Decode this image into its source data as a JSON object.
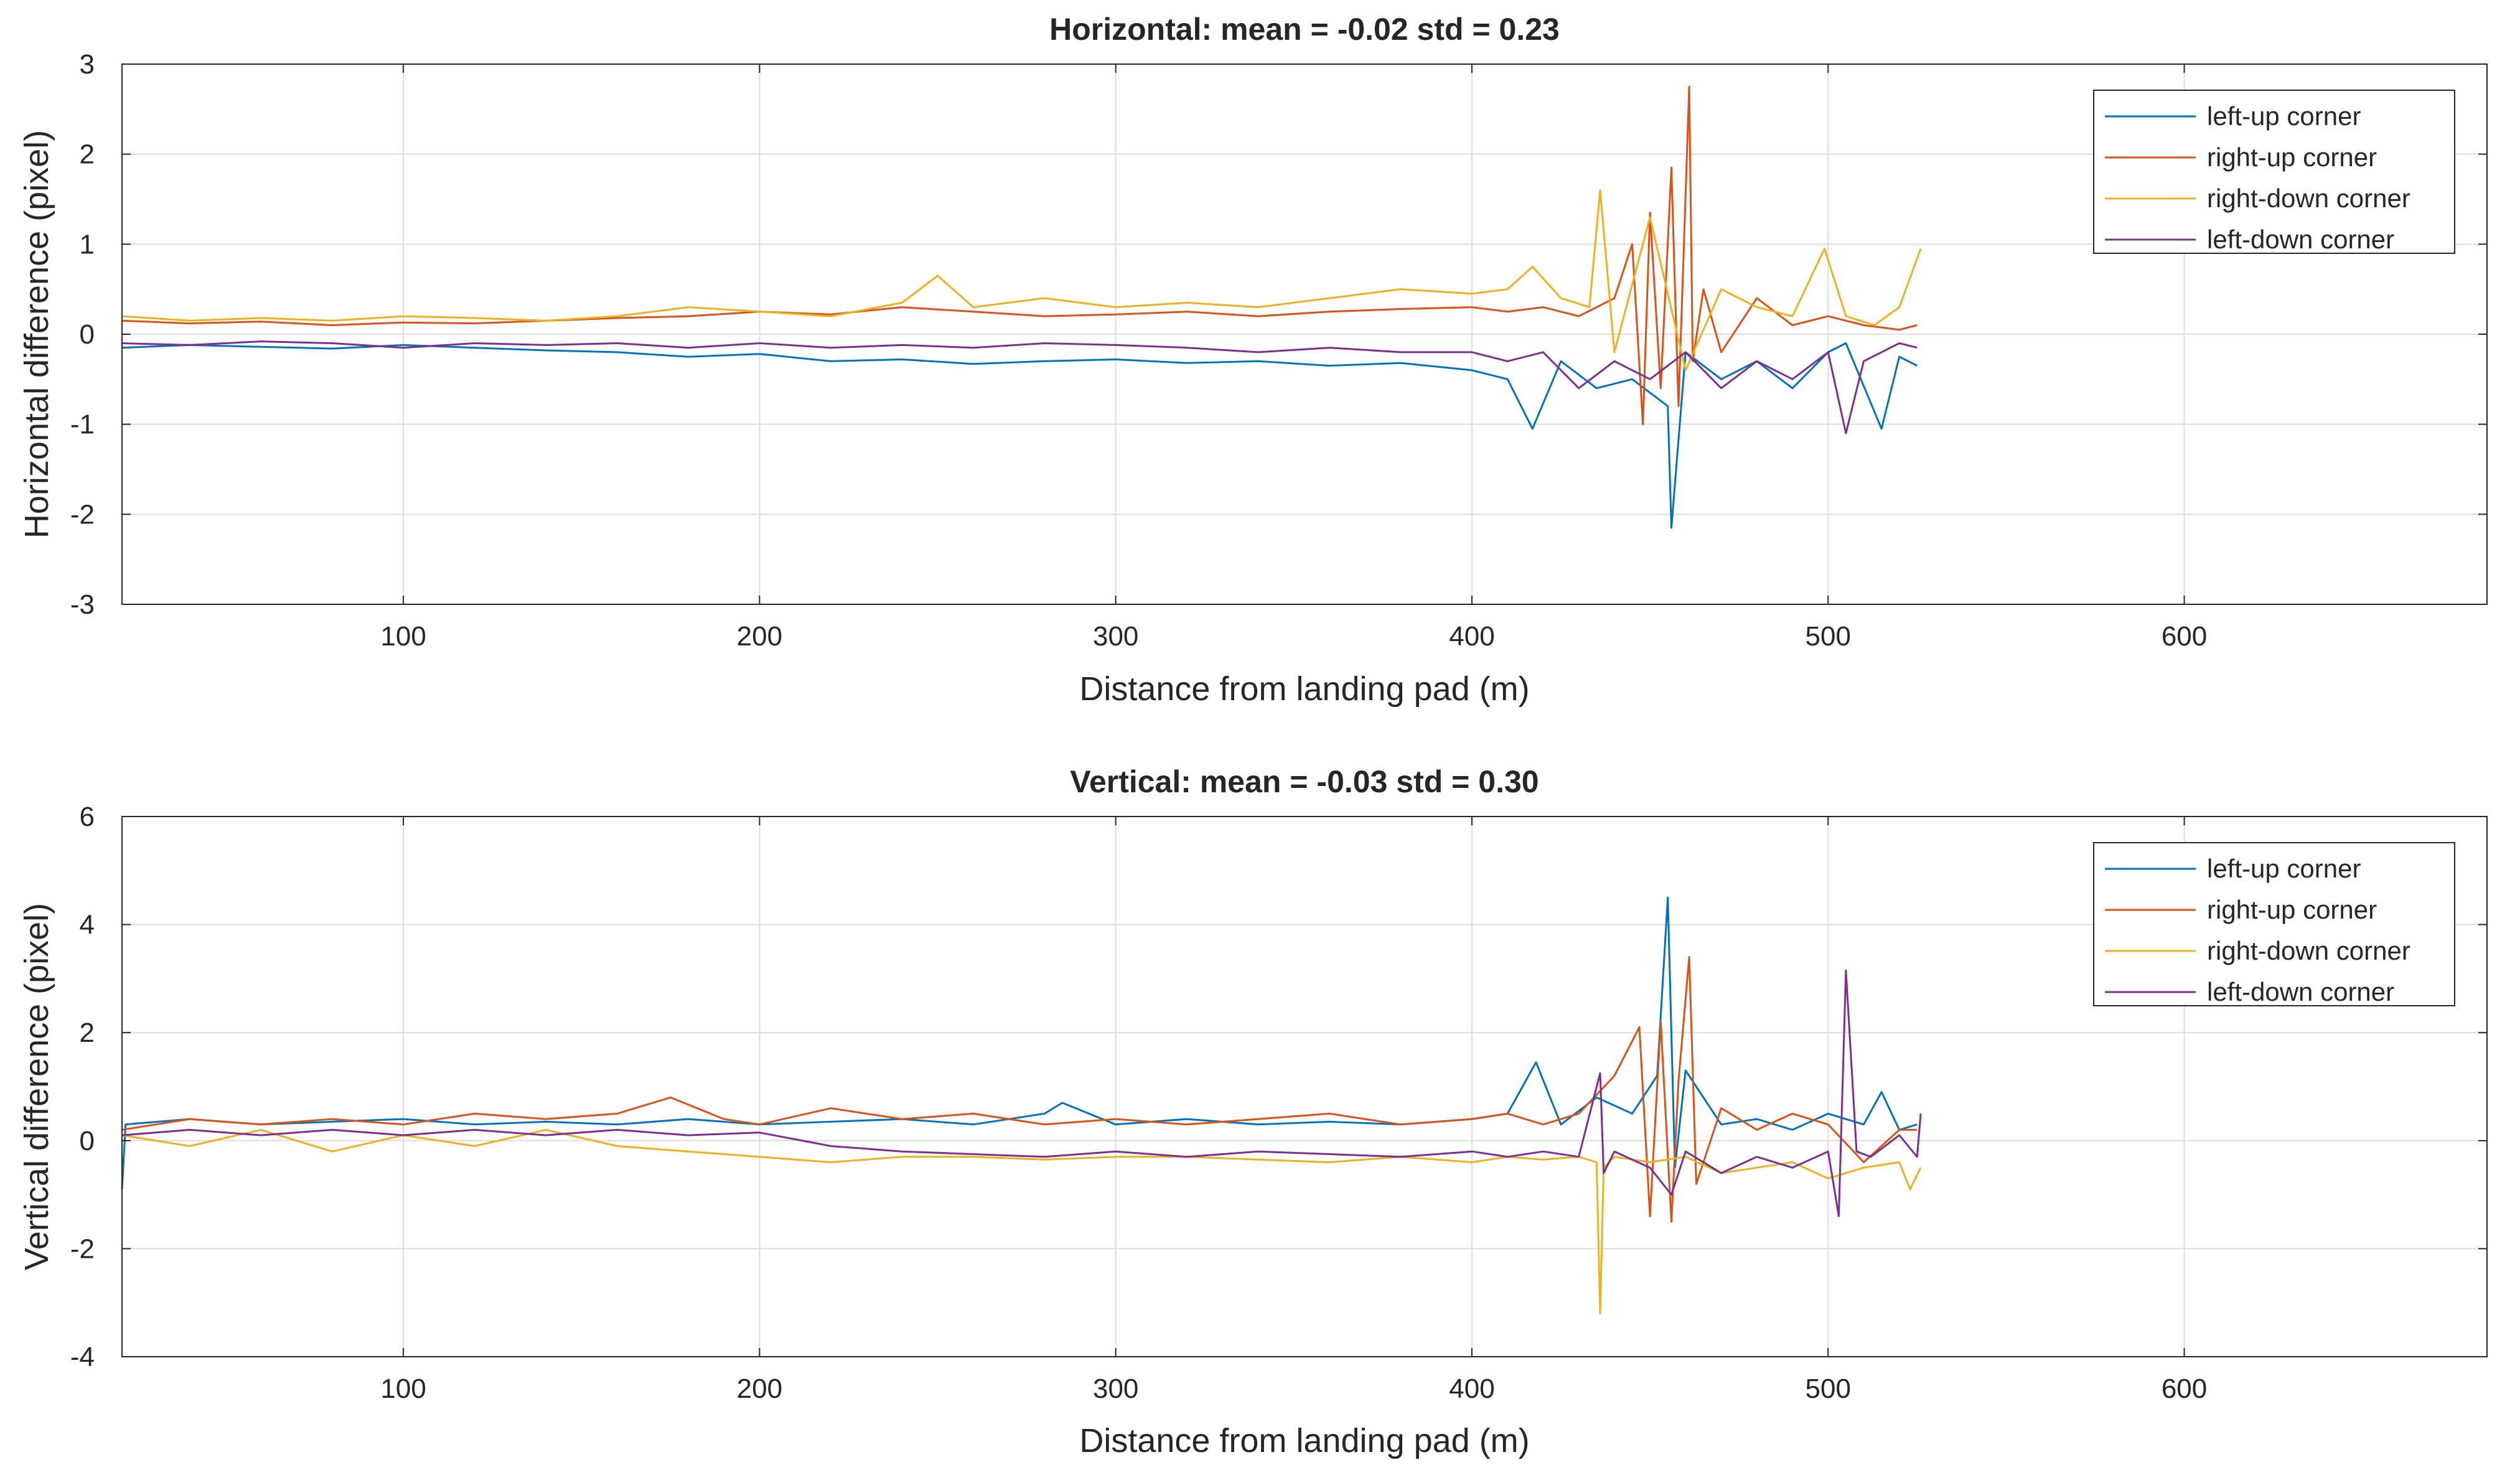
{
  "chart_data": [
    {
      "type": "line",
      "title": "Horizontal: mean = -0.02  std = 0.23",
      "xlabel": "Distance from landing pad (m)",
      "ylabel": "Horizontal difference (pixel)",
      "xlim": [
        21,
        685
      ],
      "ylim": [
        -3,
        3
      ],
      "xticks": [
        100,
        200,
        300,
        400,
        500,
        600
      ],
      "yticks": [
        -3,
        -2,
        -1,
        0,
        1,
        2,
        3
      ],
      "legend_location": "top-right",
      "grid": true,
      "series": [
        {
          "name": "left-up corner",
          "color": "#0072BD",
          "x": [
            21,
            40,
            60,
            80,
            100,
            120,
            140,
            160,
            180,
            200,
            220,
            240,
            260,
            280,
            300,
            320,
            340,
            360,
            380,
            400,
            410,
            417,
            425,
            435,
            445,
            455,
            456,
            460,
            470,
            480,
            490,
            500,
            505,
            515,
            520,
            525
          ],
          "y": [
            -0.15,
            -0.12,
            -0.14,
            -0.16,
            -0.12,
            -0.15,
            -0.18,
            -0.2,
            -0.25,
            -0.22,
            -0.3,
            -0.28,
            -0.33,
            -0.3,
            -0.28,
            -0.32,
            -0.3,
            -0.35,
            -0.32,
            -0.4,
            -0.5,
            -1.05,
            -0.3,
            -0.6,
            -0.5,
            -0.8,
            -2.15,
            -0.2,
            -0.5,
            -0.3,
            -0.6,
            -0.2,
            -0.1,
            -1.05,
            -0.25,
            -0.35
          ]
        },
        {
          "name": "right-up corner",
          "color": "#D95319",
          "x": [
            21,
            40,
            60,
            80,
            100,
            120,
            140,
            160,
            180,
            200,
            220,
            240,
            260,
            280,
            300,
            320,
            340,
            360,
            380,
            400,
            410,
            420,
            430,
            440,
            445,
            448,
            450,
            453,
            456,
            458,
            461,
            462,
            465,
            470,
            480,
            490,
            500,
            510,
            520,
            525
          ],
          "y": [
            0.15,
            0.12,
            0.14,
            0.1,
            0.13,
            0.12,
            0.15,
            0.18,
            0.2,
            0.25,
            0.22,
            0.3,
            0.25,
            0.2,
            0.22,
            0.25,
            0.2,
            0.25,
            0.28,
            0.3,
            0.25,
            0.3,
            0.2,
            0.4,
            1.0,
            -1.0,
            1.35,
            -0.6,
            1.85,
            -0.8,
            2.75,
            -0.3,
            0.5,
            -0.2,
            0.4,
            0.1,
            0.2,
            0.1,
            0.05,
            0.1
          ]
        },
        {
          "name": "right-down corner",
          "color": "#EDB120",
          "x": [
            21,
            40,
            60,
            80,
            100,
            120,
            140,
            160,
            180,
            200,
            220,
            240,
            250,
            260,
            280,
            300,
            320,
            340,
            360,
            380,
            400,
            410,
            417,
            425,
            433,
            436,
            440,
            450,
            460,
            470,
            480,
            490,
            499,
            505,
            513,
            520,
            526
          ],
          "y": [
            0.2,
            0.15,
            0.18,
            0.15,
            0.2,
            0.18,
            0.15,
            0.2,
            0.3,
            0.25,
            0.2,
            0.35,
            0.65,
            0.3,
            0.4,
            0.3,
            0.35,
            0.3,
            0.4,
            0.5,
            0.45,
            0.5,
            0.75,
            0.4,
            0.3,
            1.6,
            -0.2,
            1.3,
            -0.4,
            0.5,
            0.3,
            0.2,
            0.95,
            0.2,
            0.1,
            0.3,
            0.95
          ]
        },
        {
          "name": "left-down corner",
          "color": "#7E2F8E",
          "x": [
            21,
            40,
            60,
            80,
            100,
            120,
            140,
            160,
            180,
            200,
            220,
            240,
            260,
            280,
            300,
            320,
            340,
            360,
            380,
            400,
            410,
            420,
            430,
            440,
            450,
            460,
            470,
            480,
            490,
            500,
            505,
            510,
            520,
            525
          ],
          "y": [
            -0.1,
            -0.12,
            -0.08,
            -0.1,
            -0.15,
            -0.1,
            -0.12,
            -0.1,
            -0.15,
            -0.1,
            -0.15,
            -0.12,
            -0.15,
            -0.1,
            -0.12,
            -0.15,
            -0.2,
            -0.15,
            -0.2,
            -0.2,
            -0.3,
            -0.2,
            -0.6,
            -0.3,
            -0.5,
            -0.2,
            -0.6,
            -0.3,
            -0.5,
            -0.2,
            -1.1,
            -0.3,
            -0.1,
            -0.15
          ]
        }
      ]
    },
    {
      "type": "line",
      "title": "Vertical: mean = -0.03  std = 0.30",
      "xlabel": "Distance from landing pad (m)",
      "ylabel": "Vertical difference (pixel)",
      "xlim": [
        21,
        685
      ],
      "ylim": [
        -4,
        6
      ],
      "xticks": [
        100,
        200,
        300,
        400,
        500,
        600
      ],
      "yticks": [
        -4,
        -2,
        0,
        2,
        4,
        6
      ],
      "legend_location": "top-right",
      "grid": true,
      "series": [
        {
          "name": "left-up corner",
          "color": "#0072BD",
          "x": [
            21,
            22,
            40,
            60,
            80,
            100,
            120,
            140,
            160,
            180,
            200,
            220,
            240,
            260,
            280,
            285,
            300,
            320,
            340,
            360,
            380,
            400,
            410,
            418,
            425,
            435,
            445,
            452,
            455,
            457,
            460,
            470,
            480,
            490,
            500,
            510,
            515,
            520,
            525
          ],
          "y": [
            -0.9,
            0.3,
            0.4,
            0.3,
            0.35,
            0.4,
            0.3,
            0.35,
            0.3,
            0.4,
            0.3,
            0.35,
            0.4,
            0.3,
            0.5,
            0.7,
            0.3,
            0.4,
            0.3,
            0.35,
            0.3,
            0.4,
            0.5,
            1.45,
            0.3,
            0.8,
            0.5,
            1.2,
            4.5,
            -0.5,
            1.3,
            0.3,
            0.4,
            0.2,
            0.5,
            0.3,
            0.9,
            0.2,
            0.3
          ]
        },
        {
          "name": "right-up corner",
          "color": "#D95319",
          "x": [
            21,
            40,
            60,
            80,
            100,
            120,
            140,
            160,
            175,
            190,
            200,
            220,
            240,
            260,
            280,
            300,
            320,
            340,
            360,
            380,
            400,
            410,
            420,
            430,
            440,
            447,
            450,
            453,
            456,
            458,
            461,
            463,
            470,
            480,
            490,
            500,
            510,
            520,
            525
          ],
          "y": [
            0.2,
            0.4,
            0.3,
            0.4,
            0.3,
            0.5,
            0.4,
            0.5,
            0.8,
            0.4,
            0.3,
            0.6,
            0.4,
            0.5,
            0.3,
            0.4,
            0.3,
            0.4,
            0.5,
            0.3,
            0.4,
            0.5,
            0.3,
            0.5,
            1.2,
            2.1,
            -1.4,
            2.2,
            -1.5,
            1.1,
            3.4,
            -0.8,
            0.6,
            0.2,
            0.5,
            0.3,
            -0.4,
            0.2,
            0.2
          ]
        },
        {
          "name": "right-down corner",
          "color": "#EDB120",
          "x": [
            21,
            40,
            60,
            80,
            100,
            120,
            140,
            160,
            180,
            200,
            220,
            240,
            260,
            280,
            300,
            320,
            340,
            360,
            380,
            400,
            410,
            420,
            430,
            435,
            436,
            437,
            440,
            450,
            460,
            470,
            480,
            490,
            500,
            510,
            520,
            523,
            526
          ],
          "y": [
            0.1,
            -0.1,
            0.2,
            -0.2,
            0.1,
            -0.1,
            0.2,
            -0.1,
            -0.2,
            -0.3,
            -0.4,
            -0.3,
            -0.3,
            -0.35,
            -0.3,
            -0.3,
            -0.35,
            -0.4,
            -0.3,
            -0.4,
            -0.3,
            -0.35,
            -0.3,
            -0.4,
            -3.2,
            -0.5,
            -0.3,
            -0.4,
            -0.3,
            -0.6,
            -0.5,
            -0.4,
            -0.7,
            -0.5,
            -0.4,
            -0.9,
            -0.5
          ]
        },
        {
          "name": "left-down corner",
          "color": "#7E2F8E",
          "x": [
            21,
            40,
            60,
            80,
            100,
            120,
            140,
            160,
            180,
            200,
            220,
            240,
            260,
            280,
            300,
            320,
            340,
            360,
            380,
            400,
            410,
            420,
            430,
            436,
            437,
            440,
            450,
            456,
            460,
            470,
            480,
            490,
            500,
            503,
            505,
            508,
            512,
            520,
            525,
            526
          ],
          "y": [
            0.1,
            0.2,
            0.1,
            0.2,
            0.1,
            0.2,
            0.1,
            0.2,
            0.1,
            0.15,
            -0.1,
            -0.2,
            -0.25,
            -0.3,
            -0.2,
            -0.3,
            -0.2,
            -0.25,
            -0.3,
            -0.2,
            -0.3,
            -0.2,
            -0.3,
            1.25,
            -0.6,
            -0.2,
            -0.5,
            -1.0,
            -0.2,
            -0.6,
            -0.3,
            -0.5,
            -0.2,
            -1.4,
            3.15,
            -0.2,
            -0.3,
            0.1,
            -0.3,
            0.5
          ]
        }
      ]
    }
  ]
}
